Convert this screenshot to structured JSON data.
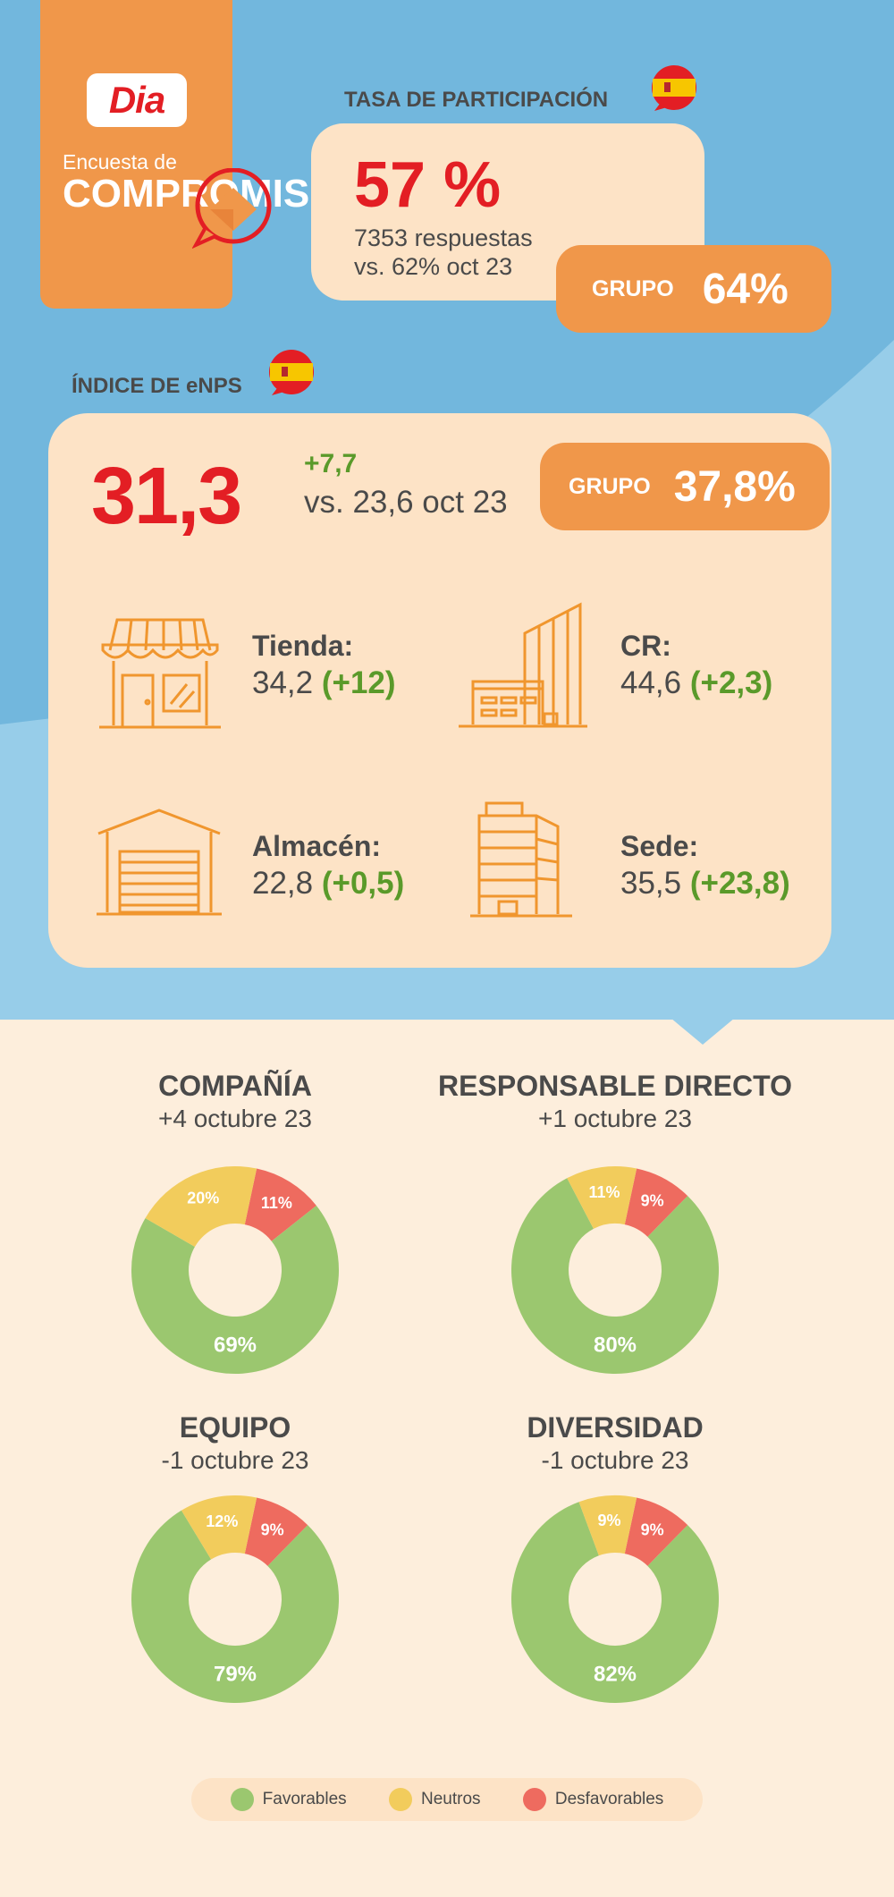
{
  "brand": {
    "logo": "Dia",
    "survey_line1": "Encuesta de",
    "survey_line2": "COMPROMISO"
  },
  "participation": {
    "title": "TASA DE PARTICIPACIÓN",
    "value": "57 %",
    "responses": "7353 respuestas",
    "previous": "vs. 62% oct 23",
    "group_label": "GRUPO",
    "group_value": "64%"
  },
  "enps": {
    "title": "ÍNDICE DE eNPS",
    "value": "31,3",
    "delta": "+7,7",
    "previous": "vs. 23,6 oct 23",
    "group_label": "GRUPO",
    "group_value": "37,8%",
    "sites": [
      {
        "name": "Tienda:",
        "value": "34,2",
        "delta": "(+12)",
        "icon": "store-icon"
      },
      {
        "name": "CR:",
        "value": "44,6",
        "delta": "(+2,3)",
        "icon": "office-building-icon"
      },
      {
        "name": "Almacén:",
        "value": "22,8",
        "delta": "(+0,5)",
        "icon": "warehouse-icon"
      },
      {
        "name": "Sede:",
        "value": "35,5",
        "delta": "(+23,8)",
        "icon": "headquarters-icon"
      }
    ]
  },
  "colors": {
    "favorable": "#9BC76F",
    "neutral": "#F2CC5C",
    "unfavorable": "#EE6B5F",
    "accent": "#F0974A",
    "red": "#E31E24",
    "green": "#5A9A2A"
  },
  "chart_data": [
    {
      "type": "pie",
      "title": "COMPAÑÍA",
      "subtitle": "+4 octubre 23",
      "categories": [
        "Favorables",
        "Neutros",
        "Desfavorables"
      ],
      "values": [
        69,
        20,
        11
      ],
      "labels": [
        "69%",
        "20%",
        "11%"
      ]
    },
    {
      "type": "pie",
      "title": "RESPONSABLE DIRECTO",
      "subtitle": "+1 octubre 23",
      "categories": [
        "Favorables",
        "Neutros",
        "Desfavorables"
      ],
      "values": [
        80,
        11,
        9
      ],
      "labels": [
        "80%",
        "11%",
        "9%"
      ]
    },
    {
      "type": "pie",
      "title": "EQUIPO",
      "subtitle": "-1 octubre 23",
      "categories": [
        "Favorables",
        "Neutros",
        "Desfavorables"
      ],
      "values": [
        79,
        12,
        9
      ],
      "labels": [
        "79%",
        "12%",
        "9%"
      ]
    },
    {
      "type": "pie",
      "title": "DIVERSIDAD",
      "subtitle": "-1 octubre 23",
      "categories": [
        "Favorables",
        "Neutros",
        "Desfavorables"
      ],
      "values": [
        82,
        9,
        9
      ],
      "labels": [
        "82%",
        "9%",
        "9%"
      ]
    }
  ],
  "legend": [
    {
      "label": "Favorables",
      "color": "#9BC76F"
    },
    {
      "label": "Neutros",
      "color": "#F2CC5C"
    },
    {
      "label": "Desfavorables",
      "color": "#EE6B5F"
    }
  ]
}
